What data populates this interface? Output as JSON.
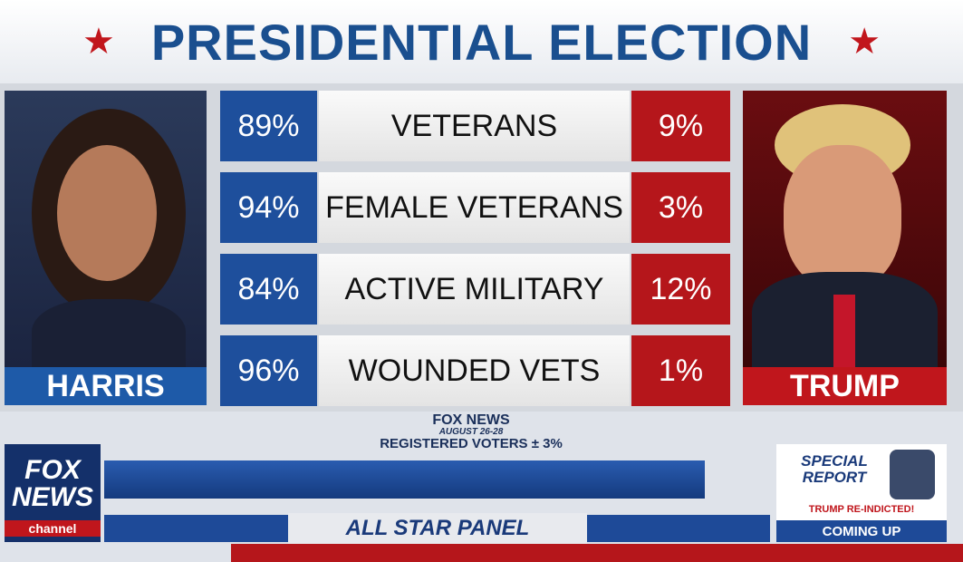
{
  "header": {
    "title": "PRESIDENTIAL ELECTION"
  },
  "candidates": {
    "left": "HARRIS",
    "right": "TRUMP"
  },
  "table": {
    "rows": [
      [
        "89%",
        "VETERANS",
        "9%"
      ],
      [
        "94%",
        "FEMALE VETERANS",
        "3%"
      ],
      [
        "84%",
        "ACTIVE MILITARY",
        "12%"
      ],
      [
        "96%",
        "WOUNDED VETS",
        "1%"
      ]
    ]
  },
  "source": {
    "outlet": "FOX NEWS",
    "dates": "AUGUST 26-28",
    "note": "REGISTERED VOTERS ± 3%"
  },
  "logo": {
    "line1": "FOX",
    "line2": "NEWS",
    "line3": "channel"
  },
  "ticker": {
    "panel": "ALL STAR PANEL"
  },
  "promo": {
    "show": "SPECIAL REPORT",
    "headline": "TRUMP RE-INDICTED!",
    "status": "COMING UP"
  }
}
